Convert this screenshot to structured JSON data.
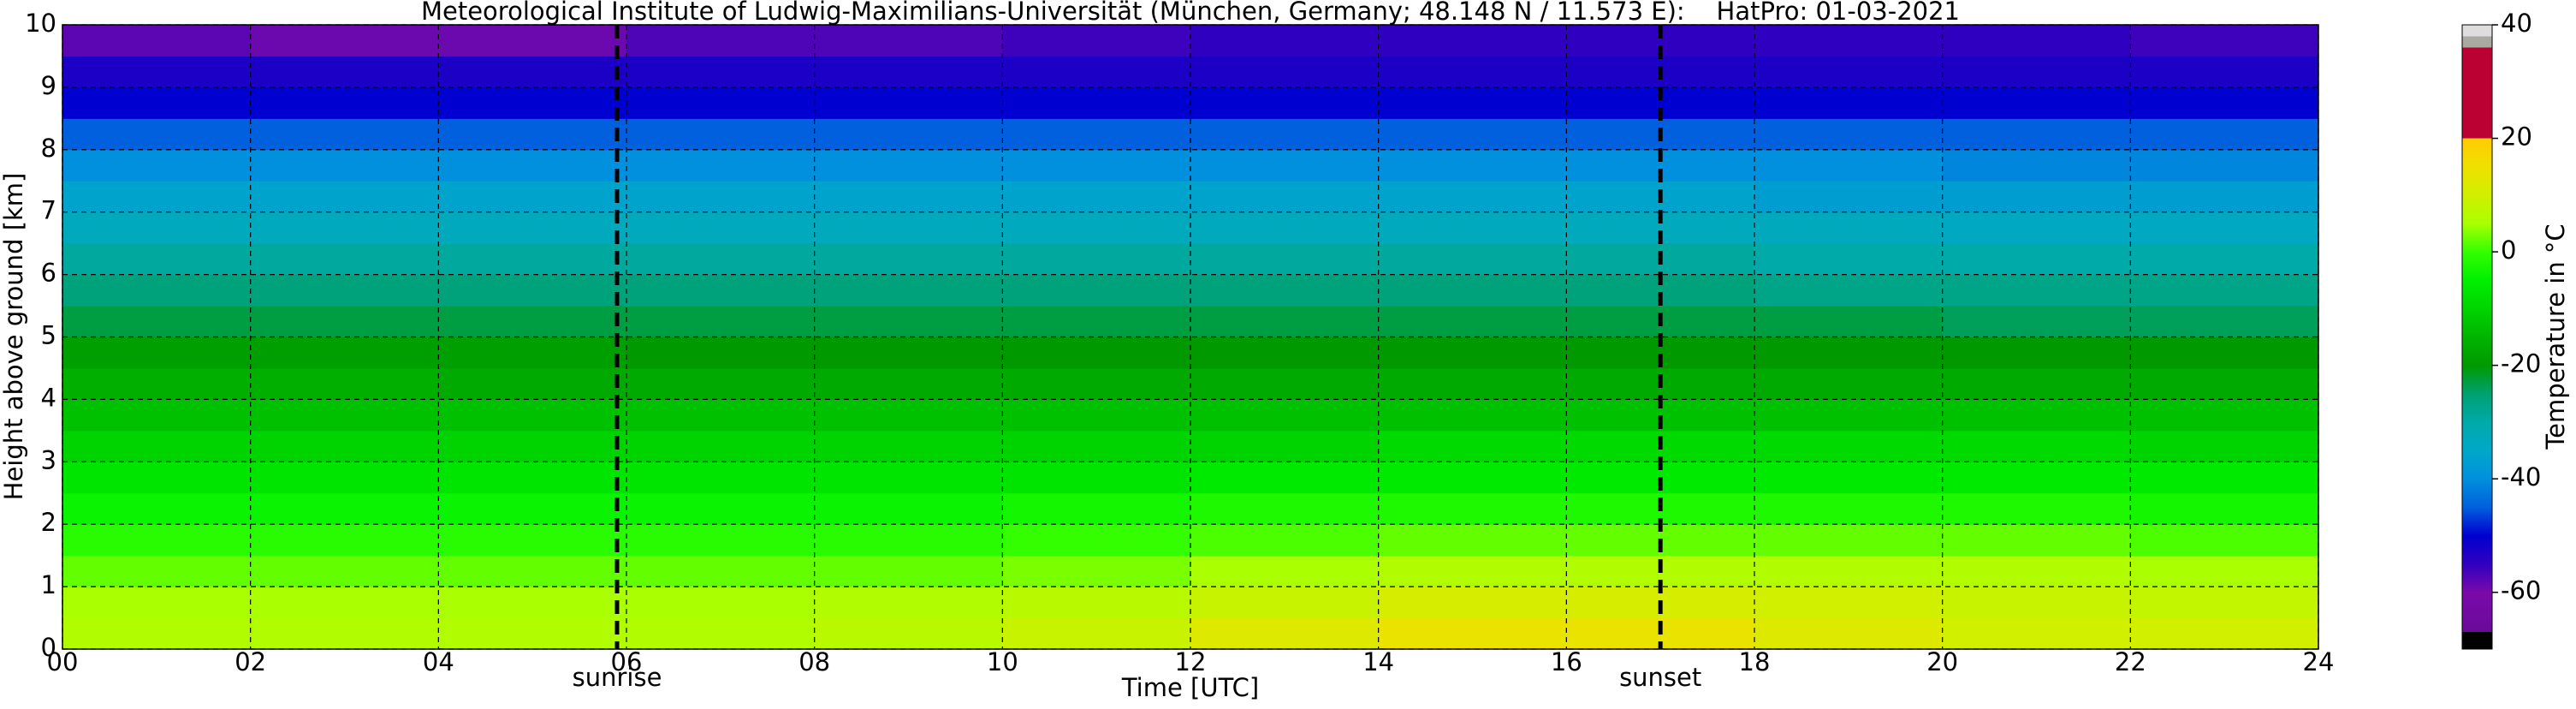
{
  "chart_data": {
    "type": "heatmap",
    "title": "Meteorological Institute of Ludwig-Maximilians-Universität (München, Germany; 48.148 N / 11.573 E):    HatPro: 01-03-2021",
    "xlabel": "Time [UTC]",
    "ylabel": "Height above ground [km]",
    "xlim": [
      0,
      24
    ],
    "ylim": [
      0,
      10
    ],
    "xticks": [
      {
        "value": 0,
        "label": "00"
      },
      {
        "value": 2,
        "label": "02"
      },
      {
        "value": 4,
        "label": "04"
      },
      {
        "value": 6,
        "label": "06"
      },
      {
        "value": 8,
        "label": "08"
      },
      10,
      12,
      14,
      16,
      18,
      20,
      22,
      24
    ],
    "yticks": [
      0,
      1,
      2,
      3,
      4,
      5,
      6,
      7,
      8,
      9,
      10
    ],
    "grid": true,
    "xbins": [
      0,
      2,
      4,
      6,
      8,
      10,
      12,
      14,
      16,
      18,
      20,
      22,
      24
    ],
    "ybins": [
      0,
      0.5,
      1,
      1.5,
      2,
      2.5,
      3,
      3.5,
      4,
      4.5,
      5,
      5.5,
      6,
      6.5,
      7,
      7.5,
      8,
      8.5,
      9,
      9.5,
      10
    ],
    "values": [
      [
        6,
        6,
        6,
        6,
        7,
        9,
        12,
        14,
        14,
        12,
        10,
        10
      ],
      [
        5,
        5,
        5,
        5,
        6,
        7,
        9,
        11,
        11,
        10,
        9,
        8
      ],
      [
        2,
        2,
        2,
        2,
        2,
        3,
        5,
        6,
        6,
        6,
        6,
        5
      ],
      [
        -1,
        -1,
        -1,
        -1,
        -1,
        0,
        1,
        2,
        2,
        2,
        2,
        1
      ],
      [
        -4,
        -4,
        -4,
        -4,
        -4,
        -3,
        -2,
        -2,
        -2,
        -2,
        -2,
        -3
      ],
      [
        -7,
        -7,
        -7,
        -7,
        -7,
        -7,
        -6,
        -6,
        -6,
        -6,
        -6,
        -6
      ],
      [
        -10,
        -10,
        -10,
        -10,
        -10,
        -10,
        -10,
        -9,
        -9,
        -9,
        -9,
        -10
      ],
      [
        -13,
        -13,
        -13,
        -13,
        -13,
        -13,
        -13,
        -13,
        -13,
        -13,
        -13,
        -13
      ],
      [
        -16,
        -16,
        -17,
        -17,
        -17,
        -17,
        -17,
        -17,
        -17,
        -17,
        -17,
        -17
      ],
      [
        -19,
        -19,
        -19,
        -20,
        -20,
        -20,
        -20,
        -20,
        -20,
        -20,
        -20,
        -20
      ],
      [
        -23,
        -23,
        -23,
        -23,
        -23,
        -23,
        -23,
        -23,
        -23,
        -23,
        -24,
        -24
      ],
      [
        -26,
        -26,
        -26,
        -26,
        -26,
        -26,
        -26,
        -26,
        -26,
        -27,
        -27,
        -27
      ],
      [
        -29,
        -29,
        -29,
        -29,
        -29,
        -29,
        -29,
        -29,
        -29,
        -30,
        -30,
        -30
      ],
      [
        -33,
        -33,
        -33,
        -33,
        -33,
        -33,
        -33,
        -33,
        -33,
        -33,
        -34,
        -34
      ],
      [
        -36,
        -36,
        -36,
        -36,
        -36,
        -36,
        -36,
        -36,
        -36,
        -37,
        -37,
        -37
      ],
      [
        -40,
        -40,
        -40,
        -40,
        -40,
        -40,
        -40,
        -40,
        -40,
        -40,
        -41,
        -41
      ],
      [
        -45,
        -45,
        -45,
        -45,
        -45,
        -45,
        -45,
        -45,
        -45,
        -45,
        -45,
        -45
      ],
      [
        -50,
        -50,
        -50,
        -50,
        -50,
        -50,
        -50,
        -50,
        -50,
        -50,
        -50,
        -50
      ],
      [
        -53,
        -53,
        -53,
        -53,
        -53,
        -53,
        -53,
        -53,
        -53,
        -53,
        -53,
        -53
      ],
      [
        -58,
        -59,
        -59,
        -57,
        -57,
        -56,
        -55,
        -55,
        -55,
        -55,
        -55,
        -56
      ]
    ],
    "annotations": [
      {
        "x": 5.9,
        "text": "sunrise"
      },
      {
        "x": 17,
        "text": "sunset"
      }
    ],
    "colorbar": {
      "label": "Temperature in °C",
      "lim": [
        -70,
        40
      ],
      "ticks": [
        -60,
        -40,
        -20,
        0,
        20,
        40
      ],
      "stops": [
        [
          -70,
          "#000000"
        ],
        [
          -67,
          "#000000"
        ],
        [
          -67,
          "#6a0a9a"
        ],
        [
          -60,
          "#7a0aaa"
        ],
        [
          -55,
          "#3000c0"
        ],
        [
          -50,
          "#0000d0"
        ],
        [
          -45,
          "#0060dd"
        ],
        [
          -40,
          "#0090dd"
        ],
        [
          -35,
          "#00a8c8"
        ],
        [
          -30,
          "#00aaa8"
        ],
        [
          -25,
          "#00a070"
        ],
        [
          -20,
          "#009a00"
        ],
        [
          -15,
          "#00b400"
        ],
        [
          -10,
          "#00d400"
        ],
        [
          -5,
          "#00f000"
        ],
        [
          0,
          "#33ff00"
        ],
        [
          5,
          "#aaff00"
        ],
        [
          10,
          "#d0f000"
        ],
        [
          15,
          "#f0e000"
        ],
        [
          20,
          "#ffcc00"
        ],
        [
          20,
          "#bb0033"
        ],
        [
          36,
          "#bb0033"
        ],
        [
          36,
          "#aaa9a0"
        ],
        [
          38,
          "#aaa9a0"
        ],
        [
          38,
          "#dddddd"
        ],
        [
          40,
          "#dddddd"
        ]
      ]
    }
  }
}
